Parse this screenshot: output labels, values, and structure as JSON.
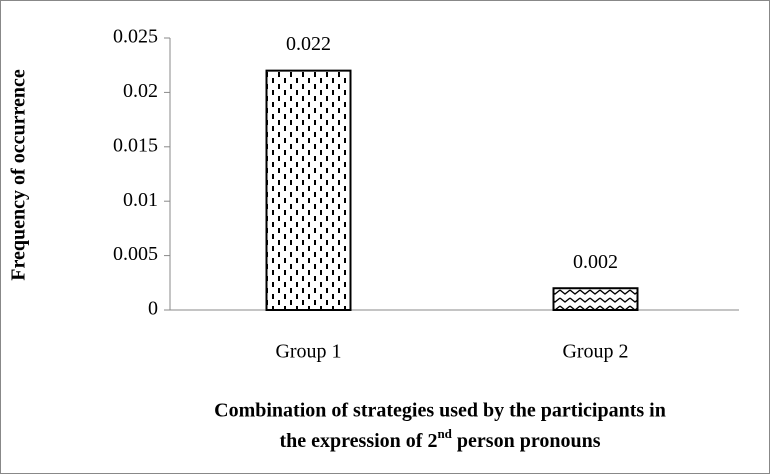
{
  "chart_data": {
    "type": "bar",
    "y_label": "Frequency of occurrence",
    "x_label": [
      "Combination of strategies used by the participants in",
      "the expression of 2",
      "nd",
      "person pronouns"
    ],
    "categories": [
      "Group 1",
      "Group 2"
    ],
    "values": [
      0.022,
      0.002
    ],
    "ylim": [
      0,
      0.025
    ],
    "yticks": [
      0,
      0.005,
      0.01,
      0.015,
      0.02,
      0.025
    ],
    "grid": false
  }
}
